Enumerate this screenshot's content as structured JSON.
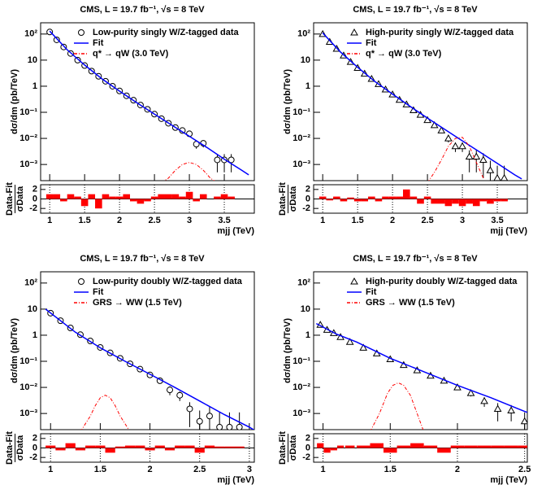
{
  "chart_data": [
    {
      "type": "scatter",
      "title": "CMS, L = 19.7 fb⁻¹, √s = 8 TeV",
      "ylabel": "dσ/dm (pb/TeV)",
      "xlabel": "mjj (TeV)",
      "log_y": true,
      "xlim": [
        0.87,
        3.93
      ],
      "xticks": [
        1,
        1.5,
        2,
        2.5,
        3,
        3.5
      ],
      "ylim": [
        0.00024,
        270
      ],
      "yticks": [
        {
          "value": 0.001,
          "label": "10⁻³"
        },
        {
          "value": 0.01,
          "label": "10⁻²"
        },
        {
          "value": 0.1,
          "label": "10⁻¹"
        },
        1,
        10,
        {
          "value": 100,
          "label": "10²"
        }
      ],
      "series": [
        {
          "name": "Low-purity singly W/Z-tagged data",
          "marker": "circle",
          "color": "#000000",
          "x": [
            1.0,
            1.1,
            1.2,
            1.3,
            1.4,
            1.5,
            1.6,
            1.7,
            1.8,
            1.9,
            2.0,
            2.1,
            2.2,
            2.3,
            2.4,
            2.5,
            2.6,
            2.7,
            2.8,
            2.9,
            3.0,
            3.1,
            3.2,
            3.4,
            3.5,
            3.6
          ],
          "values": [
            120,
            60,
            32,
            18,
            10,
            6.2,
            3.8,
            2.4,
            1.55,
            1.0,
            0.66,
            0.43,
            0.29,
            0.19,
            0.13,
            0.085,
            0.057,
            0.038,
            0.026,
            0.02,
            0.015,
            0.006,
            0.0065,
            0.0015,
            0.0015,
            0.0015
          ],
          "errors": [
            1,
            0.6,
            0.4,
            0.3,
            0.2,
            0.12,
            0.08,
            0.06,
            0.04,
            0.03,
            0.02,
            0.015,
            0.012,
            0.01,
            0.008,
            0.006,
            0.005,
            0.004,
            0.003,
            0.003,
            0.003,
            0.002,
            0.002,
            0.001,
            0.001,
            0.001
          ]
        },
        {
          "name": "Fit",
          "color": "#0000ff",
          "x": [
            1.0,
            1.25,
            1.5,
            1.75,
            2.0,
            2.25,
            2.5,
            2.75,
            3.0,
            3.25,
            3.5,
            3.75,
            3.85
          ],
          "values": [
            130,
            25,
            6.5,
            1.9,
            0.65,
            0.23,
            0.085,
            0.032,
            0.012,
            0.0045,
            0.0016,
            0.0006,
            0.0004
          ]
        },
        {
          "name": "q* → qW (3.0 TeV)",
          "color": "#ff0000",
          "dashed": true,
          "x": [
            2.6,
            2.7,
            2.8,
            2.9,
            3.0,
            3.1,
            3.2,
            3.3,
            3.4
          ],
          "values": [
            0.0002,
            0.0003,
            0.0006,
            0.001,
            0.0012,
            0.001,
            0.0006,
            0.0003,
            0.0002
          ]
        }
      ],
      "ratio": {
        "ylabel": "Data-Fit",
        "ylabel_denominator": "σData",
        "ylim": [
          -3,
          3
        ],
        "yticks": [
          -2,
          0,
          2
        ],
        "color": "#ff0000",
        "values": [
          1,
          1,
          -0.5,
          1,
          0.5,
          -1.5,
          1,
          -2,
          1,
          0.5,
          0.5,
          1,
          -0.5,
          -1,
          -0.5,
          0.5,
          1,
          1,
          1,
          0.5,
          1.5,
          -0.5,
          1,
          0.5,
          1,
          0.5
        ]
      }
    },
    {
      "type": "scatter",
      "title": "CMS, L = 19.7 fb⁻¹, √s = 8 TeV",
      "ylabel": "dσ/dm (pb/TeV)",
      "xlabel": "mjj (TeV)",
      "log_y": true,
      "xlim": [
        0.87,
        3.93
      ],
      "xticks": [
        1,
        1.5,
        2,
        2.5,
        3,
        3.5
      ],
      "ylim": [
        0.00024,
        270
      ],
      "yticks": [
        {
          "value": 0.001,
          "label": "10⁻³"
        },
        {
          "value": 0.01,
          "label": "10⁻²"
        },
        {
          "value": 0.1,
          "label": "10⁻¹"
        },
        1,
        10,
        {
          "value": 100,
          "label": "10²"
        }
      ],
      "series": [
        {
          "name": "High-purity singly W/Z-tagged data",
          "marker": "triangle",
          "color": "#000000",
          "x": [
            1.0,
            1.1,
            1.2,
            1.3,
            1.4,
            1.5,
            1.6,
            1.7,
            1.8,
            1.9,
            2.0,
            2.1,
            2.2,
            2.3,
            2.4,
            2.5,
            2.6,
            2.7,
            2.8,
            2.9,
            3.0,
            3.1,
            3.2,
            3.3,
            3.4,
            3.5,
            3.6
          ],
          "values": [
            100,
            50,
            27,
            15,
            8.5,
            5,
            3,
            1.9,
            1.2,
            0.75,
            0.48,
            0.3,
            0.2,
            0.12,
            0.08,
            0.05,
            0.032,
            0.02,
            0.01,
            0.005,
            0.005,
            0.002,
            0.002,
            0.0015,
            0.0006,
            0.0003,
            0.0003
          ],
          "errors": [
            1,
            0.6,
            0.4,
            0.3,
            0.2,
            0.12,
            0.08,
            0.06,
            0.04,
            0.03,
            0.02,
            0.015,
            0.012,
            0.01,
            0.008,
            0.006,
            0.005,
            0.004,
            0.003,
            0.002,
            0.002,
            0.0015,
            0.0015,
            0.0012,
            0.0008,
            0.0006,
            0.0006
          ]
        },
        {
          "name": "Fit",
          "color": "#0000ff",
          "x": [
            1.0,
            1.25,
            1.5,
            1.75,
            2.0,
            2.25,
            2.5,
            2.75,
            3.0,
            3.25,
            3.5,
            3.75,
            3.85
          ],
          "values": [
            110,
            21,
            5.3,
            1.5,
            0.5,
            0.17,
            0.06,
            0.022,
            0.008,
            0.003,
            0.0011,
            0.0004,
            0.00028
          ]
        },
        {
          "name": "q* → qW (3.0 TeV)",
          "color": "#ff0000",
          "dashed": true,
          "x": [
            2.5,
            2.6,
            2.7,
            2.8,
            2.9,
            3.0,
            3.1,
            3.2,
            3.3
          ],
          "values": [
            0.0002,
            0.0005,
            0.0015,
            0.005,
            0.01,
            0.011,
            0.005,
            0.0012,
            0.0003
          ]
        }
      ],
      "ratio": {
        "ylabel": "Data-Fit",
        "ylabel_denominator": "σData",
        "ylim": [
          -3,
          3
        ],
        "yticks": [
          -2,
          0,
          2
        ],
        "color": "#ff0000",
        "values": [
          0.5,
          -0.3,
          0.5,
          -0.5,
          0.3,
          -0.5,
          -0.5,
          0.5,
          -0.5,
          0.5,
          0.5,
          0.5,
          2,
          0.5,
          -1,
          0.5,
          -1,
          -1,
          -1.5,
          -1,
          -1.5,
          -1,
          -1.5,
          -0.5,
          -1,
          -0.5,
          -0.5
        ]
      }
    },
    {
      "type": "scatter",
      "title": "CMS, L = 19.7 fb⁻¹, √s = 8 TeV",
      "ylabel": "dσ/dm (pb/TeV)",
      "xlabel": "mjj (TeV)",
      "log_y": true,
      "xlim": [
        0.9,
        3.05
      ],
      "xticks": [
        1,
        1.5,
        2,
        2.5,
        3
      ],
      "ylim": [
        0.00024,
        270
      ],
      "yticks": [
        {
          "value": 0.001,
          "label": "10⁻³"
        },
        {
          "value": 0.01,
          "label": "10⁻²"
        },
        {
          "value": 0.1,
          "label": "10⁻¹"
        },
        1,
        10,
        {
          "value": 100,
          "label": "10²"
        }
      ],
      "series": [
        {
          "name": "Low-purity doubly W/Z-tagged data",
          "marker": "circle",
          "color": "#000000",
          "x": [
            1.0,
            1.1,
            1.2,
            1.3,
            1.4,
            1.5,
            1.6,
            1.7,
            1.8,
            1.9,
            2.0,
            2.1,
            2.2,
            2.3,
            2.4,
            2.5,
            2.6,
            2.7,
            2.8,
            2.9
          ],
          "values": [
            7,
            3.6,
            1.9,
            1.05,
            0.6,
            0.34,
            0.21,
            0.13,
            0.08,
            0.05,
            0.03,
            0.018,
            0.008,
            0.005,
            0.0015,
            0.0005,
            0.0008,
            0.0003,
            0.0003,
            0.0003
          ],
          "errors": [
            0.3,
            0.2,
            0.12,
            0.08,
            0.05,
            0.03,
            0.02,
            0.013,
            0.009,
            0.007,
            0.005,
            0.004,
            0.003,
            0.002,
            0.0012,
            0.0008,
            0.001,
            0.0008,
            0.0008,
            0.0008
          ]
        },
        {
          "name": "Fit",
          "color": "#0000ff",
          "x": [
            0.95,
            1.25,
            1.5,
            1.75,
            2.0,
            2.25,
            2.5,
            2.75,
            3.0,
            3.05
          ],
          "values": [
            10,
            1.3,
            0.33,
            0.1,
            0.032,
            0.01,
            0.003,
            0.0009,
            0.0003,
            0.00023
          ]
        },
        {
          "name": "GRS → WW (1.5 TeV)",
          "color": "#ff0000",
          "dashed": true,
          "x": [
            1.3,
            1.4,
            1.45,
            1.5,
            1.55,
            1.6,
            1.65,
            1.7,
            1.8
          ],
          "values": [
            0.0002,
            0.0008,
            0.002,
            0.004,
            0.005,
            0.004,
            0.002,
            0.0008,
            0.0002
          ]
        }
      ],
      "ratio": {
        "ylabel": "Data-Fit",
        "ylabel_denominator": "σData",
        "ylim": [
          -3,
          3
        ],
        "yticks": [
          -2,
          0,
          2
        ],
        "color": "#ff0000",
        "values": [
          0.5,
          -0.5,
          1,
          -0.5,
          0.5,
          0.5,
          -1,
          0.3,
          0.5,
          0.5,
          -0.5,
          0.5,
          -0.5,
          0.5,
          0.5,
          -1,
          0.5,
          0.3,
          0.3,
          0.3
        ]
      }
    },
    {
      "type": "scatter",
      "title": "CMS, L = 19.7 fb⁻¹, √s = 8 TeV",
      "ylabel": "dσ/dm (pb/TeV)",
      "xlabel": "mjj (TeV)",
      "log_y": true,
      "xlim": [
        0.93,
        2.52
      ],
      "xticks": [
        1,
        1.5,
        2,
        2.5
      ],
      "ylim": [
        0.00024,
        270
      ],
      "yticks": [
        {
          "value": 0.001,
          "label": "10⁻³"
        },
        {
          "value": 0.01,
          "label": "10⁻²"
        },
        {
          "value": 0.1,
          "label": "10⁻¹"
        },
        1,
        10,
        {
          "value": 100,
          "label": "10²"
        }
      ],
      "series": [
        {
          "name": "High-purity doubly W/Z-tagged data",
          "marker": "triangle",
          "color": "#000000",
          "x": [
            0.98,
            1.03,
            1.08,
            1.13,
            1.2,
            1.3,
            1.4,
            1.5,
            1.6,
            1.7,
            1.8,
            1.9,
            2.0,
            2.1,
            2.2,
            2.3,
            2.4,
            2.5
          ],
          "values": [
            2.5,
            1.6,
            1.2,
            0.85,
            0.55,
            0.33,
            0.2,
            0.12,
            0.072,
            0.045,
            0.028,
            0.018,
            0.01,
            0.006,
            0.003,
            0.0015,
            0.0013,
            0.0005
          ],
          "errors": [
            0.15,
            0.12,
            0.1,
            0.08,
            0.05,
            0.03,
            0.02,
            0.012,
            0.008,
            0.006,
            0.004,
            0.003,
            0.002,
            0.0015,
            0.0012,
            0.001,
            0.0008,
            0.0006
          ]
        },
        {
          "name": "Fit",
          "color": "#0000ff",
          "x": [
            0.95,
            1.1,
            1.25,
            1.5,
            1.75,
            2.0,
            2.25,
            2.5,
            2.52
          ],
          "values": [
            2.8,
            1.1,
            0.55,
            0.13,
            0.04,
            0.012,
            0.004,
            0.0012,
            0.0011
          ]
        },
        {
          "name": "GRS → WW (1.5 TeV)",
          "color": "#ff0000",
          "dashed": true,
          "x": [
            1.35,
            1.42,
            1.48,
            1.52,
            1.56,
            1.6,
            1.65,
            1.7,
            1.75
          ],
          "values": [
            0.0002,
            0.001,
            0.006,
            0.012,
            0.015,
            0.012,
            0.005,
            0.001,
            0.0002
          ]
        }
      ],
      "ratio": {
        "ylabel": "Data-Fit",
        "ylabel_denominator": "σData",
        "ylim": [
          -3,
          3
        ],
        "yticks": [
          -2,
          0,
          2
        ],
        "color": "#ff0000",
        "values": [
          1,
          -1,
          -0.5,
          0.5,
          0.5,
          0.5,
          1,
          -1,
          0.5,
          1,
          0.5,
          -1,
          0.5,
          0.5,
          0.5,
          0.5,
          0.5,
          0.5
        ]
      }
    }
  ]
}
